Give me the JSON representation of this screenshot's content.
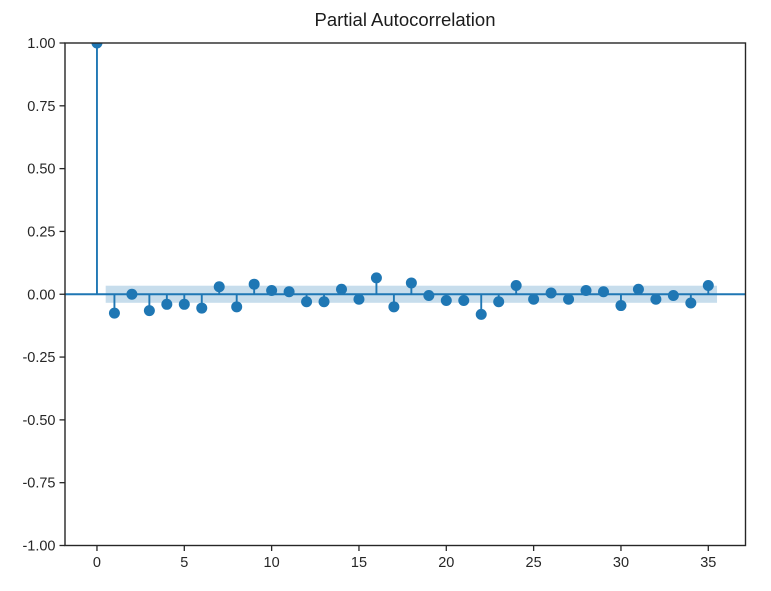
{
  "title": "Partial Autocorrelation",
  "chart_data": {
    "type": "stem",
    "title": "Partial Autocorrelation",
    "xlabel": "",
    "ylabel": "",
    "x": [
      0,
      1,
      2,
      3,
      4,
      5,
      6,
      7,
      8,
      9,
      10,
      11,
      12,
      13,
      14,
      15,
      16,
      17,
      18,
      19,
      20,
      21,
      22,
      23,
      24,
      25,
      26,
      27,
      28,
      29,
      30,
      31,
      32,
      33,
      34,
      35
    ],
    "values": [
      1.0,
      -0.075,
      0.0,
      -0.065,
      -0.04,
      -0.04,
      -0.055,
      0.03,
      -0.05,
      0.04,
      0.015,
      0.01,
      -0.03,
      -0.03,
      0.02,
      -0.02,
      0.065,
      -0.05,
      0.045,
      -0.005,
      -0.025,
      -0.025,
      -0.08,
      -0.03,
      0.035,
      -0.02,
      0.005,
      -0.02,
      0.015,
      0.01,
      -0.045,
      0.02,
      -0.02,
      -0.005,
      -0.035,
      0.035
    ],
    "confidence_band": {
      "upper": 0.034,
      "lower": -0.034,
      "x_start": 0.5,
      "x_end": 35.5
    },
    "xlim": [
      -1.83,
      37.13
    ],
    "ylim": [
      -1.0,
      1.0
    ],
    "xticks": [
      0,
      5,
      10,
      15,
      20,
      25,
      30,
      35
    ],
    "xtick_labels": [
      "0",
      "5",
      "10",
      "15",
      "20",
      "25",
      "30",
      "35"
    ],
    "yticks": [
      1.0,
      0.75,
      0.5,
      0.25,
      0.0,
      -0.25,
      -0.5,
      -0.75,
      -1.0
    ],
    "ytick_labels": [
      "1.00",
      "0.75",
      "0.50",
      "0.25",
      "0.00",
      "-0.25",
      "-0.50",
      "-0.75",
      "-1.00"
    ],
    "grid": false,
    "legend": "none",
    "colors": {
      "series": "#1f77b4",
      "band_fill": "#1f77b4",
      "band_opacity": 0.25,
      "axis": "#262626",
      "tick_text": "#262626",
      "title_text": "#1c1c1c",
      "background": "#ffffff"
    },
    "marker_radius": 5.5,
    "stem_width": 1.9,
    "baseline_width": 2.0
  }
}
